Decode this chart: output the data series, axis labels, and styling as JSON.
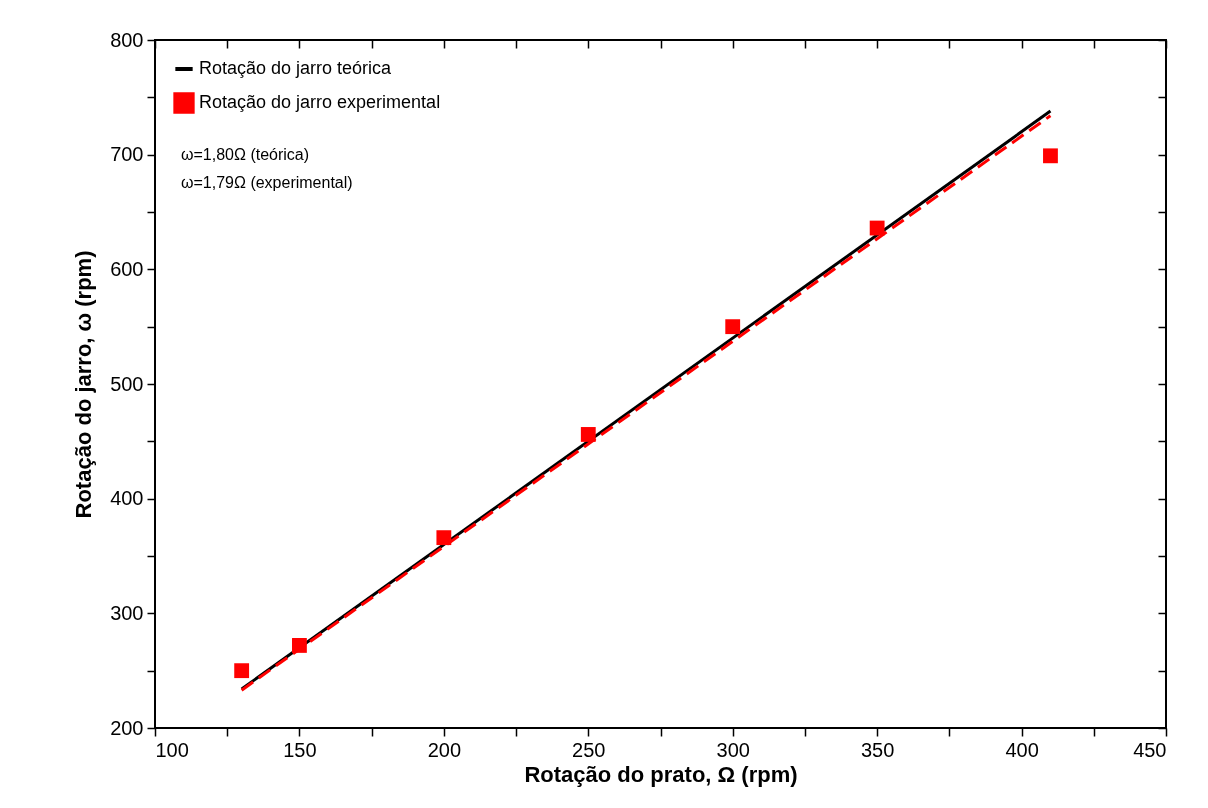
{
  "chart_data": {
    "type": "line",
    "xlabel": "Rotação do prato, Ω (rpm)",
    "ylabel": "Rotação do jarro, ω (rpm)",
    "xlim": [
      100,
      450
    ],
    "ylim": [
      200,
      800
    ],
    "xticks": [
      100,
      {
        "value": 125,
        "label": null
      },
      150,
      {
        "value": 175,
        "label": null
      },
      200,
      {
        "value": 225,
        "label": null
      },
      250,
      {
        "value": 275,
        "label": null
      },
      300,
      {
        "value": 325,
        "label": null
      },
      350,
      {
        "value": 375,
        "label": null
      },
      400,
      {
        "value": 425,
        "label": null
      },
      450
    ],
    "yticks": [
      200,
      {
        "value": 250,
        "label": null
      },
      300,
      {
        "value": 350,
        "label": null
      },
      400,
      {
        "value": 450,
        "label": null
      },
      500,
      {
        "value": 550,
        "label": null
      },
      600,
      {
        "value": 650,
        "label": null
      },
      700,
      {
        "value": 750,
        "label": null
      },
      800
    ],
    "grid": false,
    "legend": "top left",
    "series": [
      {
        "name": "Rotação do jarro teórica",
        "type": "line",
        "line_style": "solid",
        "color": "#000000",
        "x": [
          130,
          410
        ],
        "values": [
          234,
          738
        ]
      },
      {
        "name": "Rotação do jarro experimental",
        "type": "scatter",
        "marker": "square",
        "color": "#ff0000",
        "x": [
          130,
          150,
          200,
          250,
          300,
          350,
          410
        ],
        "values": [
          250,
          272,
          366,
          456,
          550,
          636,
          699
        ]
      },
      {
        "type": "line",
        "line_style": "dashed",
        "color": "#ff0000",
        "x": [
          130,
          410
        ],
        "values": [
          233,
          734
        ]
      }
    ],
    "annotations": [
      "ω=1,80Ω (teórica)",
      "ω=1,79Ω (experimental)"
    ]
  }
}
